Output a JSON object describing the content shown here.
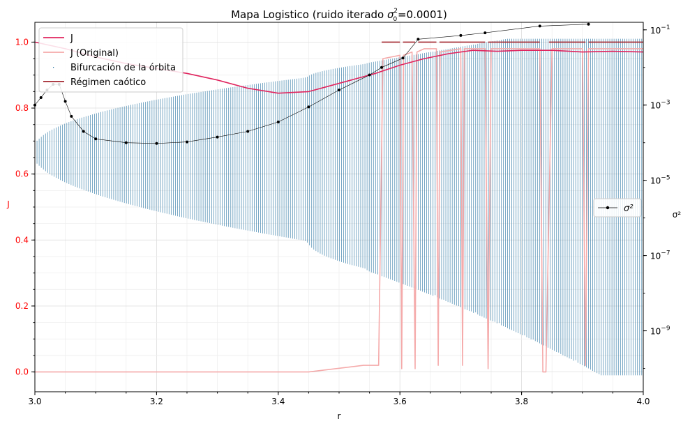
{
  "chart_data": {
    "type": "line",
    "title_text": "Mapa Logistico (ruido iterado ",
    "title_sigma": "σ",
    "title_sup": "2",
    "title_sub": "0",
    "title_value": "=0.0001)",
    "xlabel": "r",
    "ylabel_left": "J",
    "ylabel_right": "σ²",
    "xlim": [
      3.0,
      4.0
    ],
    "ylim_left": [
      -0.06,
      1.06
    ],
    "ylim_right_log10": [
      -10.62,
      -0.8
    ],
    "right_axis_scale": "log",
    "grid": true,
    "x_ticks": [
      "3.0",
      "3.2",
      "3.4",
      "3.6",
      "3.8",
      "4.0"
    ],
    "y_ticks_left": [
      "0.0",
      "0.2",
      "0.4",
      "0.6",
      "0.8",
      "1.0"
    ],
    "y_ticks_right": [
      {
        "base": "10",
        "exp": "−1"
      },
      {
        "base": "10",
        "exp": "−3"
      },
      {
        "base": "10",
        "exp": "−5"
      },
      {
        "base": "10",
        "exp": "−7"
      },
      {
        "base": "10",
        "exp": "−9"
      }
    ],
    "colors": {
      "J": "#e0245e",
      "J_original": "#f5aaaa",
      "bifurcation": "#1f6f9f",
      "chaotic": "#a3252e",
      "sigma2": "#000000",
      "left_axis_text": "#ff0000"
    },
    "legend_left": {
      "placement": "upper-left",
      "items": [
        "J",
        "J (Original)",
        "Bifurcación de la órbita",
        "Régimen caótico"
      ]
    },
    "legend_right": {
      "placement": "center-right",
      "items": [
        "σ²"
      ]
    },
    "series": [
      {
        "name": "J",
        "axis": "left",
        "x": [
          3.0,
          3.05,
          3.1,
          3.15,
          3.2,
          3.25,
          3.3,
          3.35,
          3.4,
          3.45,
          3.48,
          3.52,
          3.56,
          3.6,
          3.64,
          3.68,
          3.72,
          3.76,
          3.8,
          3.85,
          3.9,
          3.95,
          4.0
        ],
        "values": [
          1.0,
          0.98,
          0.955,
          0.935,
          0.92,
          0.905,
          0.885,
          0.86,
          0.845,
          0.85,
          0.865,
          0.885,
          0.905,
          0.93,
          0.95,
          0.965,
          0.975,
          0.972,
          0.975,
          0.975,
          0.97,
          0.972,
          0.97
        ]
      },
      {
        "name": "J (Original)",
        "axis": "left",
        "x": [
          3.0,
          3.45,
          3.54,
          3.565,
          3.572,
          3.6,
          3.603,
          3.606,
          3.62,
          3.625,
          3.628,
          3.64,
          3.66,
          3.663,
          3.666,
          3.7,
          3.703,
          3.706,
          3.74,
          3.745,
          3.75,
          3.8,
          3.83,
          3.835,
          3.84,
          3.85,
          3.9,
          3.905,
          3.91,
          3.95,
          4.0
        ],
        "values": [
          0.0,
          0.0,
          0.02,
          0.02,
          0.95,
          0.96,
          0.01,
          0.96,
          0.97,
          0.01,
          0.97,
          0.98,
          0.98,
          0.02,
          0.97,
          0.98,
          0.02,
          0.98,
          0.98,
          0.01,
          0.98,
          0.98,
          0.98,
          0.0,
          0.0,
          0.98,
          0.98,
          0.02,
          0.98,
          0.98,
          0.98
        ]
      },
      {
        "name": "σ²",
        "axis": "right",
        "x": [
          3.0,
          3.01,
          3.02,
          3.03,
          3.04,
          3.05,
          3.06,
          3.08,
          3.1,
          3.15,
          3.2,
          3.25,
          3.3,
          3.35,
          3.4,
          3.45,
          3.5,
          3.55,
          3.57,
          3.605,
          3.63,
          3.7,
          3.74,
          3.83,
          3.91
        ],
        "log10_values": [
          -3.0,
          -2.8,
          -2.6,
          -2.45,
          -2.45,
          -2.9,
          -3.3,
          -3.7,
          -3.9,
          -4.0,
          -4.02,
          -3.98,
          -3.85,
          -3.7,
          -3.45,
          -3.05,
          -2.6,
          -2.2,
          -2.0,
          -1.75,
          -1.25,
          -1.15,
          -1.08,
          -0.9,
          -0.85
        ]
      }
    ],
    "bifurcation": {
      "name": "Bifurcación de la órbita",
      "r_start": 3.0,
      "r_end": 4.0,
      "stable_branches_at_start": [
        0.735,
        0.585
      ],
      "chaos_onset_r": 3.57,
      "range_at_end": [
        -0.01,
        1.01
      ]
    },
    "chaotic_regime": {
      "name": "Régimen caótico",
      "y": 1.0,
      "segments": [
        [
          3.57,
          3.6
        ],
        [
          3.605,
          3.625
        ],
        [
          3.63,
          3.66
        ],
        [
          3.665,
          3.74
        ],
        [
          3.745,
          3.83
        ],
        [
          3.845,
          3.905
        ],
        [
          3.91,
          4.0
        ]
      ]
    }
  }
}
